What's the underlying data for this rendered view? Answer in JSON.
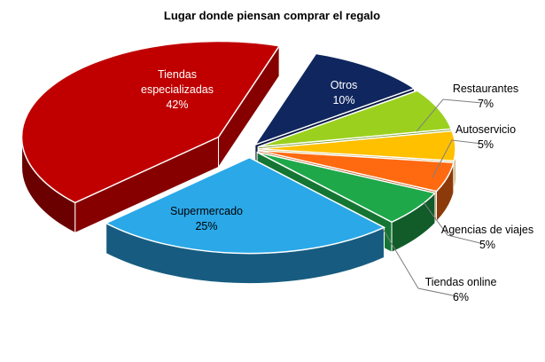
{
  "chart_data": {
    "type": "pie",
    "title": "Lugar donde piensan comprar el regalo",
    "slices": [
      {
        "label": "Otros",
        "value": 10,
        "value_label": "10%",
        "color": "#10265f"
      },
      {
        "label": "Restaurantes",
        "value": 7,
        "value_label": "7%",
        "color": "#9bd11e"
      },
      {
        "label": "Autoservicio",
        "value": 5,
        "value_label": "5%",
        "color": "#ffc000"
      },
      {
        "label": "Agencias de viajes",
        "value": 5,
        "value_label": "5%",
        "color": "#ff6a10"
      },
      {
        "label": "Tiendas online",
        "value": 6,
        "value_label": "6%",
        "color": "#1ea84a"
      },
      {
        "label": "Supermercado",
        "value": 25,
        "value_label": "25%",
        "color": "#2aa8e8"
      },
      {
        "label": "Tiendas especializadas",
        "value": 42,
        "value_label": "42%",
        "color": "#c00000"
      }
    ],
    "style": "3d-exploded",
    "legend": "none"
  }
}
